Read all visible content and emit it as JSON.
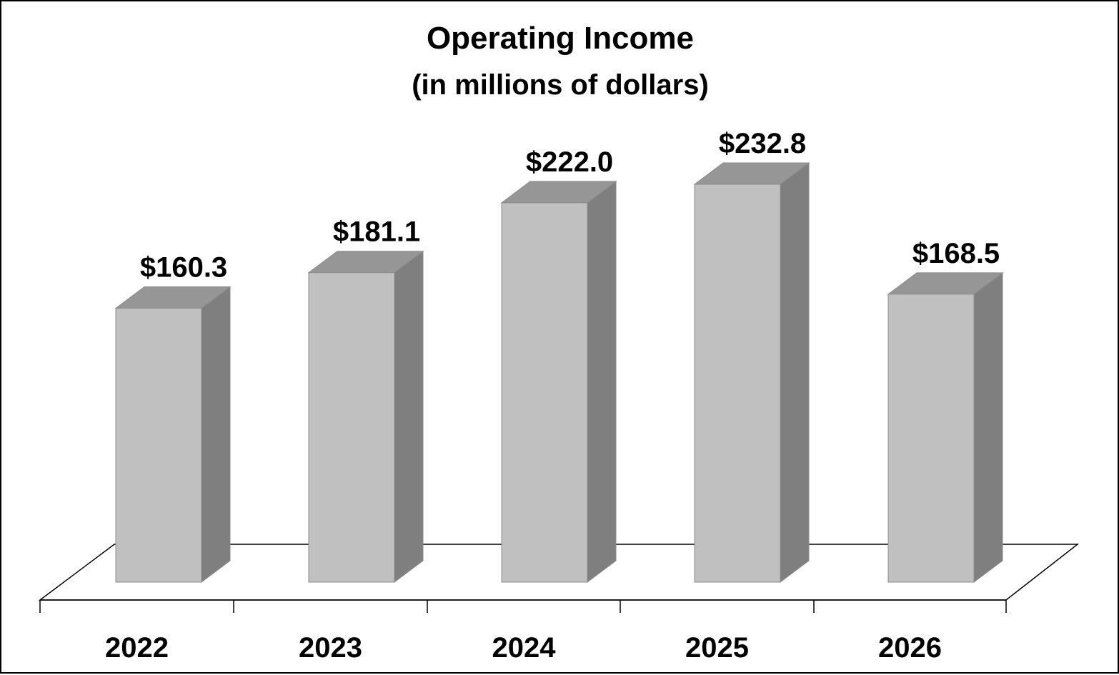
{
  "chart_data": {
    "type": "bar",
    "title": "Operating Income",
    "subtitle": "(in millions of dollars)",
    "categories": [
      "2022",
      "2023",
      "2024",
      "2025",
      "2026"
    ],
    "values": [
      160.3,
      181.1,
      222.0,
      232.8,
      168.5
    ],
    "data_labels": [
      "$160.3",
      "$181.1",
      "$222.0",
      "$232.8",
      "$168.5"
    ],
    "xlabel": "",
    "ylabel": "",
    "ylim": [
      0,
      232.8
    ],
    "grid": false,
    "legend": "none",
    "style": "3d-column",
    "colors": {
      "front": "#c0c0c0",
      "side": "#7f7f7f",
      "top": "#969696",
      "edge": "#8c8c8c",
      "floor": "#ffffff",
      "axis": "#000000",
      "text": "#000000"
    }
  }
}
